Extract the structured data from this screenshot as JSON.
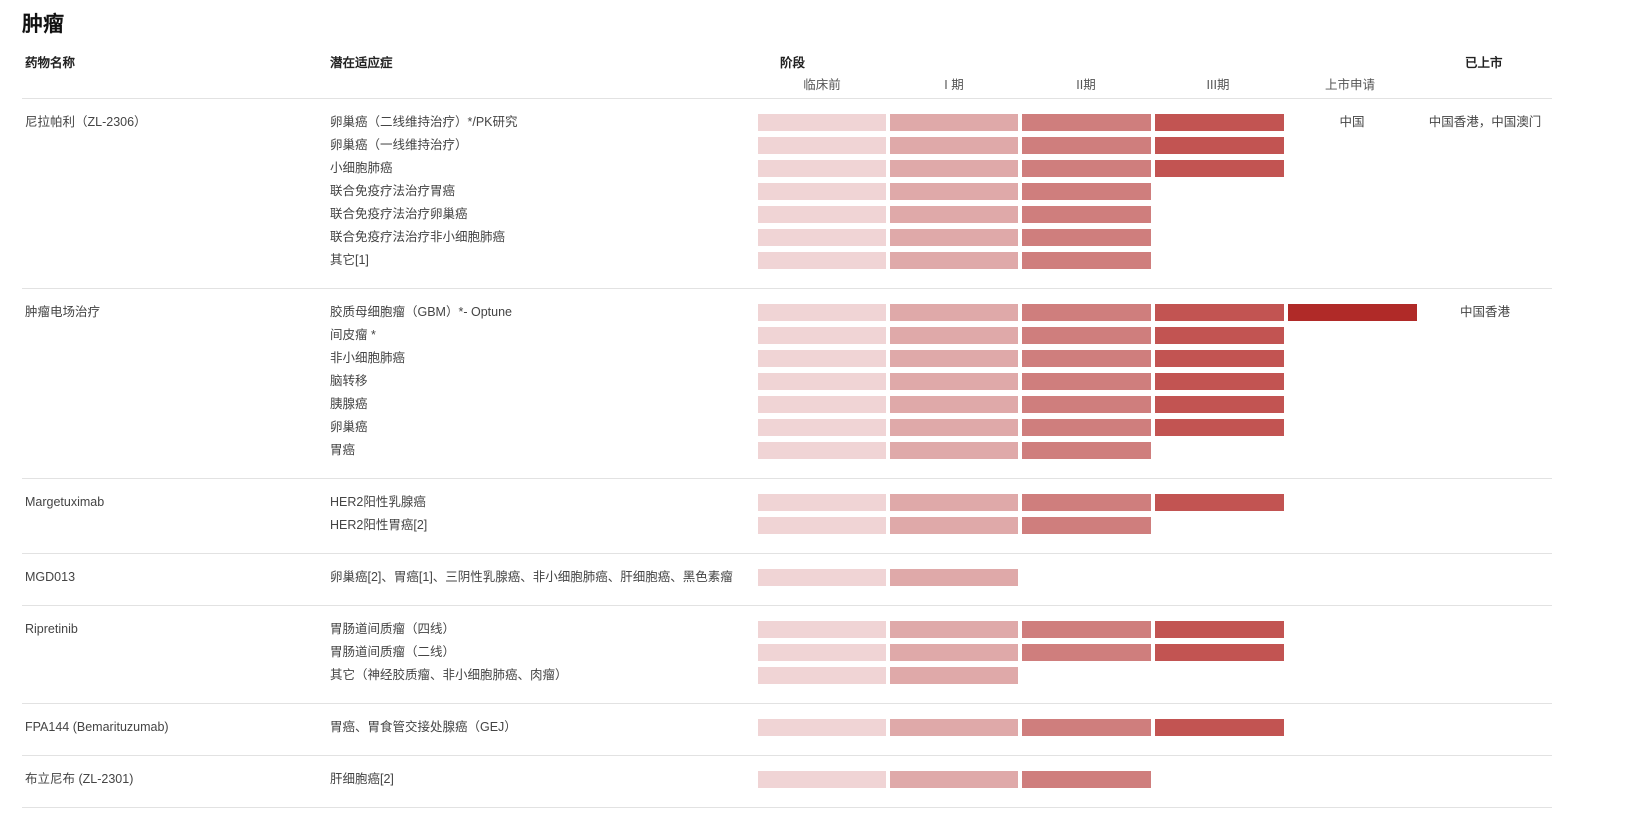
{
  "title": "肿瘤",
  "headers": {
    "drug": "药物名称",
    "indication": "潜在适应症",
    "stage": "阶段",
    "launched": "已上市",
    "stages": [
      "临床前",
      "I 期",
      "II期",
      "III期",
      "上市申请"
    ]
  },
  "stage_colors": [
    "#f0d4d5",
    "#dfa9a9",
    "#cf7e7d",
    "#c25452",
    "#b02a28"
  ],
  "groups": [
    {
      "drug": "尼拉帕利（ZL-2306）",
      "application": "中国",
      "launched": "中国香港，中国澳门",
      "rows": [
        {
          "indication": "卵巢癌（二线维持治疗）*/PK研究",
          "stage": 4
        },
        {
          "indication": "卵巢癌（一线维持治疗）",
          "stage": 4
        },
        {
          "indication": "小细胞肺癌",
          "stage": 4
        },
        {
          "indication": "联合免疫疗法治疗胃癌",
          "stage": 3
        },
        {
          "indication": "联合免疫疗法治疗卵巢癌",
          "stage": 3
        },
        {
          "indication": "联合免疫疗法治疗非小细胞肺癌",
          "stage": 3
        },
        {
          "indication": "其它[1]",
          "stage": 3
        }
      ]
    },
    {
      "drug": "肿瘤电场治疗",
      "application": "",
      "launched": "中国香港",
      "rows": [
        {
          "indication": "胶质母细胞瘤（GBM）*- Optune",
          "stage": 5
        },
        {
          "indication": "间皮瘤 *",
          "stage": 4
        },
        {
          "indication": "非小细胞肺癌",
          "stage": 4
        },
        {
          "indication": "脑转移",
          "stage": 4
        },
        {
          "indication": "胰腺癌",
          "stage": 4
        },
        {
          "indication": "卵巢癌",
          "stage": 4
        },
        {
          "indication": "胃癌",
          "stage": 3
        }
      ]
    },
    {
      "drug": "Margetuximab",
      "application": "",
      "launched": "",
      "rows": [
        {
          "indication": "HER2阳性乳腺癌",
          "stage": 4
        },
        {
          "indication": "HER2阳性胃癌[2]",
          "stage": 3
        }
      ]
    },
    {
      "drug": "MGD013",
      "application": "",
      "launched": "",
      "rows": [
        {
          "indication": "卵巢癌[2]、胃癌[1]、三阴性乳腺癌、非小细胞肺癌、肝细胞癌、黑色素瘤",
          "stage": 2
        }
      ]
    },
    {
      "drug": "Ripretinib",
      "application": "",
      "launched": "",
      "rows": [
        {
          "indication": "胃肠道间质瘤（四线）",
          "stage": 4
        },
        {
          "indication": "胃肠道间质瘤（二线）",
          "stage": 4
        },
        {
          "indication": "其它（神经胶质瘤、非小细胞肺癌、肉瘤）",
          "stage": 2
        }
      ]
    },
    {
      "drug": "FPA144 (Bemarituzumab)",
      "application": "",
      "launched": "",
      "rows": [
        {
          "indication": "胃癌、胃食管交接处腺癌（GEJ）",
          "stage": 4
        }
      ]
    },
    {
      "drug": "布立尼布 (ZL-2301)",
      "application": "",
      "launched": "",
      "rows": [
        {
          "indication": "肝细胞癌[2]",
          "stage": 3
        }
      ]
    }
  ]
}
